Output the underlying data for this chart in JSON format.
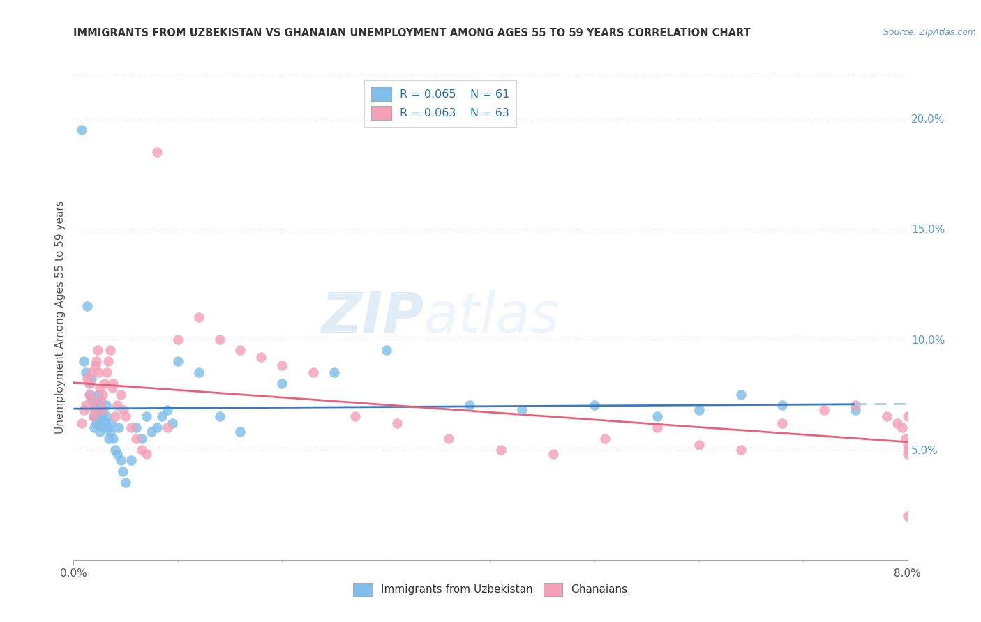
{
  "title": "IMMIGRANTS FROM UZBEKISTAN VS GHANAIAN UNEMPLOYMENT AMONG AGES 55 TO 59 YEARS CORRELATION CHART",
  "source": "Source: ZipAtlas.com",
  "ylabel": "Unemployment Among Ages 55 to 59 years",
  "ylabel_right_ticks": [
    "5.0%",
    "10.0%",
    "15.0%",
    "20.0%"
  ],
  "ylabel_right_vals": [
    0.05,
    0.1,
    0.15,
    0.2
  ],
  "legend_blue_R": "R = 0.065",
  "legend_blue_N": "N = 61",
  "legend_pink_R": "R = 0.063",
  "legend_pink_N": "N = 63",
  "legend_label_blue": "Immigrants from Uzbekistan",
  "legend_label_pink": "Ghanaians",
  "color_blue": "#7fbfea",
  "color_pink": "#f4a0b8",
  "color_blue_line": "#3a7abf",
  "color_pink_line": "#e8607a",
  "color_blue_dash": "#a8cce8",
  "watermark_zip": "ZIP",
  "watermark_atlas": "atlas",
  "xmin": 0.0,
  "xmax": 0.08,
  "ymin": 0.0,
  "ymax": 0.22,
  "blue_x": [
    0.0008,
    0.001,
    0.0012,
    0.0013,
    0.0015,
    0.0016,
    0.0017,
    0.0018,
    0.0019,
    0.002,
    0.002,
    0.0021,
    0.0022,
    0.0022,
    0.0023,
    0.0024,
    0.0024,
    0.0025,
    0.0025,
    0.0026,
    0.0027,
    0.0028,
    0.0028,
    0.003,
    0.0031,
    0.0032,
    0.0033,
    0.0034,
    0.0035,
    0.0036,
    0.0038,
    0.004,
    0.0042,
    0.0043,
    0.0045,
    0.0047,
    0.005,
    0.0055,
    0.006,
    0.0065,
    0.007,
    0.0075,
    0.008,
    0.0085,
    0.009,
    0.0095,
    0.01,
    0.012,
    0.014,
    0.016,
    0.02,
    0.025,
    0.03,
    0.038,
    0.043,
    0.05,
    0.056,
    0.06,
    0.064,
    0.068,
    0.075
  ],
  "blue_y": [
    0.195,
    0.09,
    0.085,
    0.115,
    0.08,
    0.075,
    0.082,
    0.072,
    0.065,
    0.07,
    0.06,
    0.068,
    0.065,
    0.062,
    0.07,
    0.075,
    0.068,
    0.063,
    0.058,
    0.072,
    0.065,
    0.068,
    0.06,
    0.063,
    0.07,
    0.065,
    0.06,
    0.055,
    0.058,
    0.062,
    0.055,
    0.05,
    0.048,
    0.06,
    0.045,
    0.04,
    0.035,
    0.045,
    0.06,
    0.055,
    0.065,
    0.058,
    0.06,
    0.065,
    0.068,
    0.062,
    0.09,
    0.085,
    0.065,
    0.058,
    0.08,
    0.085,
    0.095,
    0.07,
    0.068,
    0.07,
    0.065,
    0.068,
    0.075,
    0.07,
    0.068
  ],
  "pink_x": [
    0.0008,
    0.001,
    0.0012,
    0.0013,
    0.0015,
    0.0016,
    0.0017,
    0.0018,
    0.0019,
    0.002,
    0.0021,
    0.0022,
    0.0023,
    0.0024,
    0.0025,
    0.0026,
    0.0027,
    0.0028,
    0.003,
    0.0032,
    0.0033,
    0.0035,
    0.0037,
    0.0038,
    0.004,
    0.0042,
    0.0045,
    0.0048,
    0.005,
    0.0055,
    0.006,
    0.0065,
    0.007,
    0.008,
    0.009,
    0.01,
    0.012,
    0.014,
    0.016,
    0.018,
    0.02,
    0.023,
    0.027,
    0.031,
    0.036,
    0.041,
    0.046,
    0.051,
    0.056,
    0.06,
    0.064,
    0.068,
    0.072,
    0.075,
    0.078,
    0.079,
    0.0795,
    0.0798,
    0.08,
    0.08,
    0.08,
    0.08,
    0.08
  ],
  "pink_y": [
    0.062,
    0.068,
    0.07,
    0.082,
    0.075,
    0.08,
    0.085,
    0.072,
    0.065,
    0.068,
    0.088,
    0.09,
    0.095,
    0.085,
    0.078,
    0.072,
    0.068,
    0.075,
    0.08,
    0.085,
    0.09,
    0.095,
    0.078,
    0.08,
    0.065,
    0.07,
    0.075,
    0.068,
    0.065,
    0.06,
    0.055,
    0.05,
    0.048,
    0.185,
    0.06,
    0.1,
    0.11,
    0.1,
    0.095,
    0.092,
    0.088,
    0.085,
    0.065,
    0.062,
    0.055,
    0.05,
    0.048,
    0.055,
    0.06,
    0.052,
    0.05,
    0.062,
    0.068,
    0.07,
    0.065,
    0.062,
    0.06,
    0.055,
    0.052,
    0.05,
    0.048,
    0.02,
    0.065
  ]
}
